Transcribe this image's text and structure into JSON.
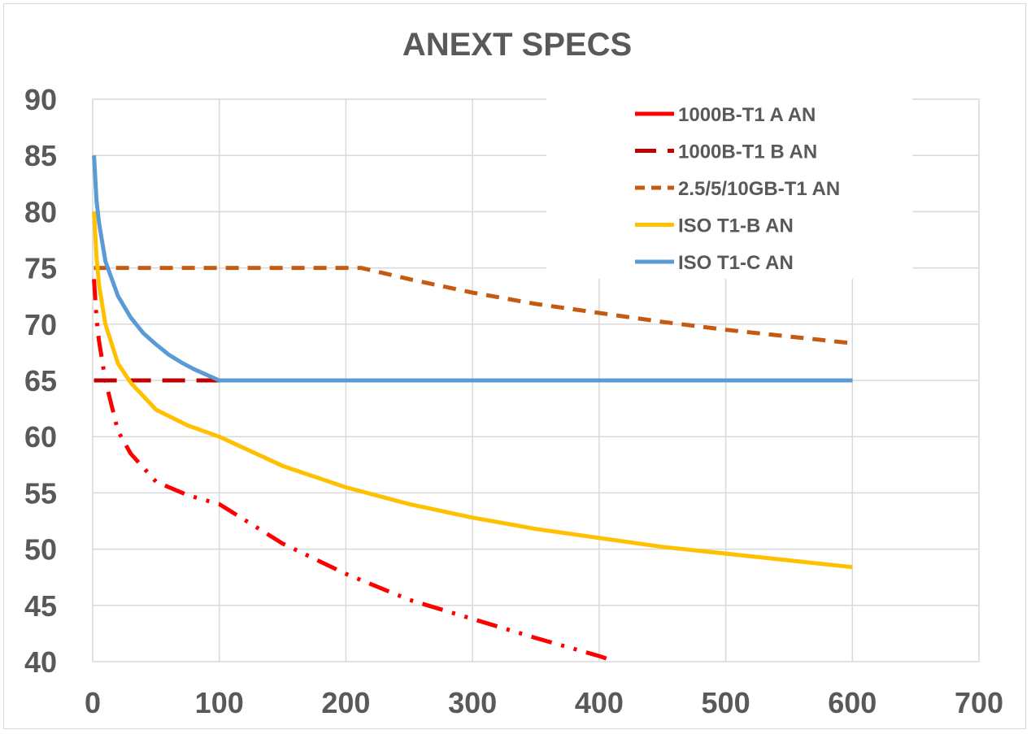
{
  "chart_data": {
    "type": "line",
    "title": "ANEXT SPECS",
    "xlabel": "",
    "ylabel": "",
    "xlim": [
      0,
      700
    ],
    "ylim": [
      40,
      90
    ],
    "x_ticks": [
      "0",
      "100",
      "200",
      "300",
      "400",
      "500",
      "600",
      "700"
    ],
    "y_ticks": [
      "40",
      "45",
      "50",
      "55",
      "60",
      "65",
      "70",
      "75",
      "80",
      "85",
      "90"
    ],
    "grid": true,
    "legend_position": "top-right",
    "series": [
      {
        "name": "1000B-T1 A AN",
        "color": "#ff0000",
        "dash": "dash-dot-dot",
        "points": [
          [
            1,
            74
          ],
          [
            3,
            70.5
          ],
          [
            5,
            68.5
          ],
          [
            10,
            65
          ],
          [
            20,
            60.5
          ],
          [
            30,
            58.5
          ],
          [
            50,
            56
          ],
          [
            75,
            54.8
          ],
          [
            100,
            54
          ],
          [
            150,
            50.5
          ],
          [
            200,
            47.8
          ],
          [
            250,
            45.5
          ],
          [
            300,
            43.8
          ],
          [
            350,
            42.1
          ],
          [
            400,
            40.5
          ],
          [
            413,
            40
          ]
        ]
      },
      {
        "name": "1000B-T1 B AN",
        "color": "#c00000",
        "dash": "long-dash",
        "points": [
          [
            1,
            65
          ],
          [
            100,
            65
          ],
          [
            600,
            65
          ]
        ]
      },
      {
        "name": "2.5/5/10GB-T1 AN",
        "color": "#c55a11",
        "dash": "dash",
        "points": [
          [
            1,
            75
          ],
          [
            100,
            75
          ],
          [
            212,
            75
          ],
          [
            250,
            74
          ],
          [
            300,
            72.8
          ],
          [
            350,
            71.8
          ],
          [
            400,
            71
          ],
          [
            450,
            70.2
          ],
          [
            500,
            69.5
          ],
          [
            550,
            68.9
          ],
          [
            600,
            68.3
          ]
        ]
      },
      {
        "name": "ISO T1-B AN",
        "color": "#ffc000",
        "dash": "solid",
        "points": [
          [
            1,
            80
          ],
          [
            3,
            76
          ],
          [
            5,
            73.5
          ],
          [
            10,
            70
          ],
          [
            20,
            66.5
          ],
          [
            30,
            64.8
          ],
          [
            50,
            62.4
          ],
          [
            75,
            61
          ],
          [
            100,
            60
          ],
          [
            150,
            57.4
          ],
          [
            200,
            55.5
          ],
          [
            250,
            54
          ],
          [
            300,
            52.8
          ],
          [
            350,
            51.8
          ],
          [
            400,
            51
          ],
          [
            450,
            50.2
          ],
          [
            500,
            49.6
          ],
          [
            550,
            49
          ],
          [
            600,
            48.4
          ]
        ]
      },
      {
        "name": "ISO T1-C AN",
        "color": "#5b9bd5",
        "dash": "solid",
        "points": [
          [
            1,
            85
          ],
          [
            3,
            81
          ],
          [
            5,
            79
          ],
          [
            10,
            75.6
          ],
          [
            20,
            72.5
          ],
          [
            30,
            70.6
          ],
          [
            40,
            69.2
          ],
          [
            50,
            68.2
          ],
          [
            60,
            67.3
          ],
          [
            70,
            66.6
          ],
          [
            80,
            66
          ],
          [
            90,
            65.5
          ],
          [
            100,
            65
          ],
          [
            200,
            65
          ],
          [
            300,
            65
          ],
          [
            400,
            65
          ],
          [
            500,
            65
          ],
          [
            600,
            65
          ]
        ]
      }
    ]
  }
}
